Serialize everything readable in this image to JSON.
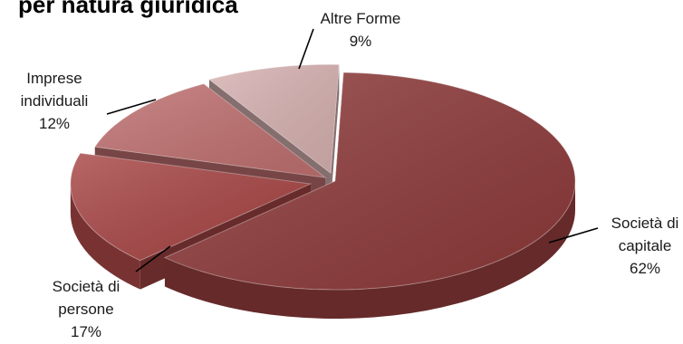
{
  "chart_data": {
    "type": "pie",
    "title": "per natura giuridica",
    "slices": [
      {
        "label": "Società di capitale",
        "value": 62,
        "label_lines": [
          "Società di",
          "capitale",
          "62%"
        ],
        "color": "#8e3a3a"
      },
      {
        "label": "Società di persone",
        "value": 17,
        "label_lines": [
          "Società di",
          "persone",
          "17%"
        ],
        "color": "#a84545"
      },
      {
        "label": "Imprese individuali",
        "value": 12,
        "label_lines": [
          "Imprese",
          "individuali",
          "12%"
        ],
        "color": "#c07070"
      },
      {
        "label": "Altre Forme",
        "value": 9,
        "label_lines": [
          "Altre Forme",
          "9%"
        ],
        "color": "#d7b1b1"
      }
    ],
    "unit": "%"
  }
}
